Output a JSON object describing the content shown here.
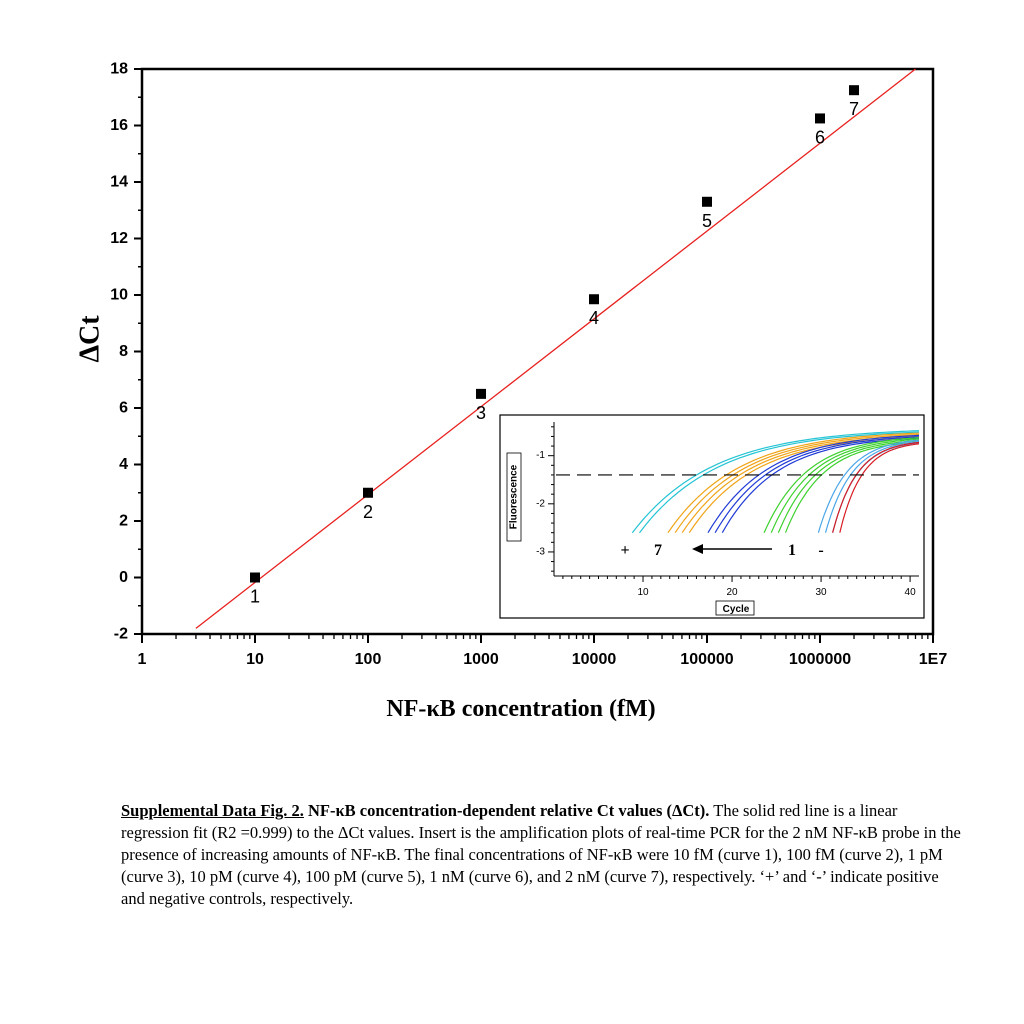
{
  "chart_data": [
    {
      "type": "scatter",
      "xlabel": "NF-κB concentration (fM)",
      "ylabel": "ΔCt",
      "xscale": "log",
      "xlim": [
        1,
        10000000
      ],
      "ylim": [
        -2,
        18
      ],
      "x_tick_labels": [
        "1",
        "10",
        "100",
        "1000",
        "10000",
        "100000",
        "1000000",
        "1E7"
      ],
      "x_tick_values": [
        1,
        10,
        100,
        1000,
        10000,
        100000,
        1000000,
        10000000
      ],
      "y_ticks": [
        -2,
        0,
        2,
        4,
        6,
        8,
        10,
        12,
        14,
        16,
        18
      ],
      "series": [
        {
          "points": [
            {
              "x": 10,
              "y": 0.0,
              "label": "1"
            },
            {
              "x": 100,
              "y": 3.0,
              "label": "2"
            },
            {
              "x": 1000,
              "y": 6.5,
              "label": "3"
            },
            {
              "x": 10000,
              "y": 9.85,
              "label": "4"
            },
            {
              "x": 100000,
              "y": 13.3,
              "label": "5"
            },
            {
              "x": 1000000,
              "y": 16.25,
              "label": "6"
            },
            {
              "x": 2000000,
              "y": 17.25,
              "label": "7"
            }
          ]
        }
      ],
      "fit_line": {
        "x": [
          3,
          7000000
        ],
        "y": [
          -1.8,
          18
        ],
        "color": "#e8211f"
      },
      "marker_color": "#000000"
    },
    {
      "type": "line",
      "xlabel": "Cycle",
      "ylabel": "Fluorescence",
      "xlim": [
        0,
        41
      ],
      "ylim": [
        -3.5,
        -0.3
      ],
      "x_ticks": [
        10,
        20,
        30,
        40
      ],
      "y_ticks": [
        -3,
        -2,
        -1
      ],
      "threshold": -1.4,
      "curves": [
        {
          "color": "#24c4d4",
          "start": 8.8,
          "count": 2
        },
        {
          "color": "#f0a418",
          "start": 12.8,
          "count": 4
        },
        {
          "color": "#1f3bd6",
          "start": 17.3,
          "count": 3
        },
        {
          "color": "#3dd12e",
          "start": 23.6,
          "count": 4
        },
        {
          "color": "#4aa6e8",
          "start": 29.7,
          "count": 3
        },
        {
          "color": "#d81c24",
          "start": 31.3,
          "count": 2
        }
      ],
      "annotations": {
        "plus": "+",
        "seven": "7",
        "one": "1",
        "minus": "-"
      }
    }
  ],
  "caption": {
    "label": "Supplemental Data Fig. 2.",
    "title": "NF-κB concentration-dependent relative Ct values (ΔCt).",
    "body": "The solid red line is a linear regression fit (R2 =0.999) to the ΔCt values. Insert is the amplification plots of real-time PCR for the 2 nM NF-κB probe in the presence of increasing amounts of NF-κB. The final concentrations of NF-κB were 10 fM (curve 1), 100 fM (curve 2), 1 pM (curve 3), 10 pM (curve 4), 100 pM (curve 5), 1 nM (curve 6), and 2 nM (curve 7), respectively. ‘+’ and ‘-’ indicate positive and negative controls, respectively."
  }
}
